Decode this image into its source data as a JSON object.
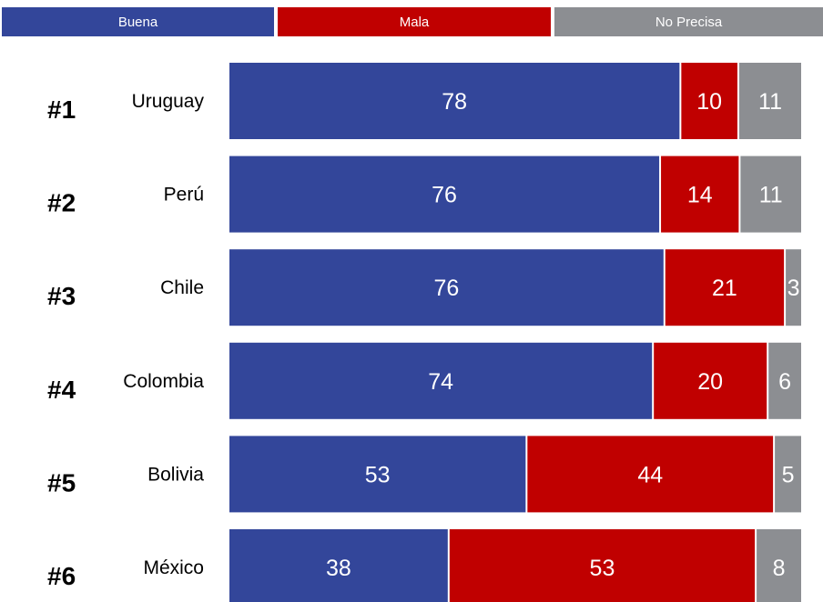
{
  "legend": [
    {
      "label": "Buena",
      "color": "#33469a"
    },
    {
      "label": "Mala",
      "color": "#c00000"
    },
    {
      "label": "No Precisa",
      "color": "#8c8e92"
    }
  ],
  "chart_data": {
    "type": "bar",
    "orientation": "horizontal",
    "stacked": true,
    "categories": [
      "Uruguay",
      "Perú",
      "Chile",
      "Colombia",
      "Bolivia",
      "México"
    ],
    "ranks": [
      "#1",
      "#2",
      "#3",
      "#4",
      "#5",
      "#6"
    ],
    "series": [
      {
        "name": "Buena",
        "color": "#33469a",
        "values": [
          78,
          76,
          76,
          74,
          53,
          38
        ]
      },
      {
        "name": "Mala",
        "color": "#c00000",
        "values": [
          10,
          14,
          21,
          20,
          44,
          53
        ]
      },
      {
        "name": "No Precisa",
        "color": "#8c8e92",
        "values": [
          11,
          11,
          3,
          6,
          5,
          8
        ]
      }
    ],
    "grid": false,
    "legend_position": "top"
  }
}
